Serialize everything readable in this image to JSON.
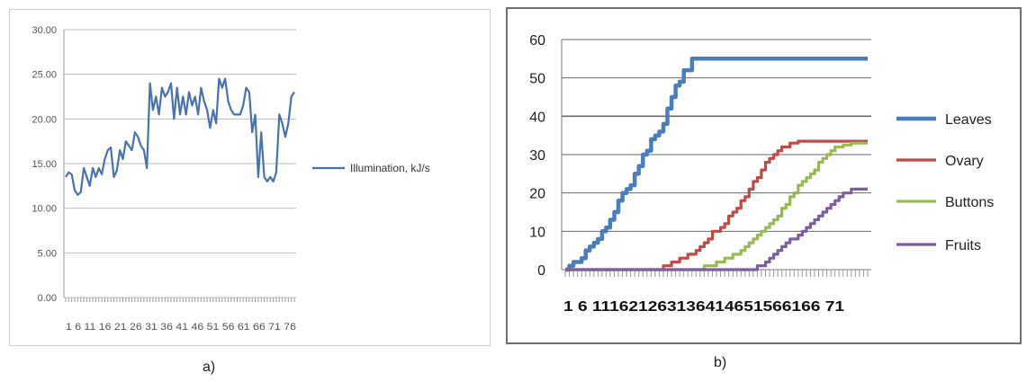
{
  "captions": {
    "a": "a)",
    "b": "b)"
  },
  "chart_data": [
    {
      "type": "line",
      "ylim": [
        0,
        30
      ],
      "yticks": [
        "0.00",
        "5.00",
        "10.00",
        "15.00",
        "20.00",
        "25.00",
        "30.00"
      ],
      "xtick_text": "1  6  11 16 21 26 31 36 41 46 51 56 61 66 71 76",
      "grid": true,
      "legend_position": "right",
      "colors": {
        "series": "#4a72b0",
        "grid": "#bdbdbd",
        "axis": "#9a9a9a"
      },
      "series": [
        {
          "name": "Illumination, kJ/s",
          "x": [
            1,
            2,
            3,
            4,
            5,
            6,
            7,
            8,
            9,
            10,
            11,
            12,
            13,
            14,
            15,
            16,
            17,
            18,
            19,
            20,
            21,
            22,
            23,
            24,
            25,
            26,
            27,
            28,
            29,
            30,
            31,
            32,
            33,
            34,
            35,
            36,
            37,
            38,
            39,
            40,
            41,
            42,
            43,
            44,
            45,
            46,
            47,
            48,
            49,
            50,
            51,
            52,
            53,
            54,
            55,
            56,
            57,
            58,
            59,
            60,
            61,
            62,
            63,
            64,
            65,
            66,
            67,
            68,
            69,
            70,
            71,
            72,
            73,
            74,
            75,
            76,
            77
          ],
          "values": [
            13.5,
            14.0,
            13.8,
            12.0,
            11.5,
            11.8,
            14.5,
            13.5,
            12.5,
            14.5,
            13.5,
            14.5,
            13.8,
            15.5,
            16.5,
            16.8,
            13.5,
            14.2,
            16.5,
            15.5,
            17.5,
            17.0,
            16.5,
            18.5,
            18.0,
            17.0,
            16.5,
            14.5,
            24.0,
            21.0,
            22.5,
            20.5,
            23.5,
            22.5,
            23.0,
            24.0,
            20.0,
            23.5,
            20.5,
            22.5,
            20.5,
            23.0,
            21.5,
            22.5,
            20.5,
            23.5,
            22.0,
            21.0,
            19.0,
            21.0,
            19.5,
            24.5,
            23.5,
            24.5,
            22.0,
            21.0,
            20.5,
            20.5,
            20.5,
            21.5,
            23.5,
            23.0,
            18.5,
            20.5,
            13.5,
            18.5,
            13.5,
            13.0,
            13.5,
            13.0,
            14.0,
            20.5,
            19.5,
            18.0,
            19.5,
            22.5,
            23.0
          ]
        }
      ]
    },
    {
      "type": "line",
      "ylim": [
        0,
        60
      ],
      "yticks": [
        "0",
        "10",
        "20",
        "30",
        "40",
        "50",
        "60"
      ],
      "xtick_text": "1  6 111621263136414651566166 71",
      "grid": true,
      "legend_position": "right",
      "colors": {
        "grid": "#6a6a6a",
        "axis": "#7a7a7a",
        "ticks": "#9a9a9a"
      },
      "series": [
        {
          "name": "Leaves",
          "color": "#4a7ebb",
          "x": [
            1,
            2,
            3,
            4,
            5,
            6,
            7,
            8,
            9,
            10,
            11,
            12,
            13,
            14,
            15,
            16,
            17,
            18,
            19,
            20,
            21,
            22,
            23,
            24,
            25,
            26,
            27,
            28,
            29,
            30,
            31,
            32,
            33,
            34,
            35,
            36,
            37,
            38,
            39,
            40,
            41,
            42,
            43,
            44,
            45,
            46,
            47,
            48,
            49,
            50,
            51,
            52,
            53,
            54,
            55,
            56,
            57,
            58,
            59,
            60,
            61,
            62,
            63,
            64,
            65,
            66,
            67,
            68,
            69,
            70,
            71,
            72,
            73,
            74,
            75
          ],
          "values": [
            0,
            1,
            2,
            2,
            3,
            5,
            6,
            7,
            8,
            10,
            11,
            13,
            15,
            18,
            20,
            21,
            22,
            25,
            27,
            30,
            31,
            34,
            35,
            36,
            38,
            42,
            45,
            48,
            49,
            52,
            52,
            55,
            55,
            55,
            55,
            55,
            55,
            55,
            55,
            55,
            55,
            55,
            55,
            55,
            55,
            55,
            55,
            55,
            55,
            55,
            55,
            55,
            55,
            55,
            55,
            55,
            55,
            55,
            55,
            55,
            55,
            55,
            55,
            55,
            55,
            55,
            55,
            55,
            55,
            55,
            55,
            55,
            55,
            55,
            55
          ]
        },
        {
          "name": "Ovary",
          "color": "#be4b48",
          "x": [
            1,
            2,
            3,
            4,
            5,
            6,
            7,
            8,
            9,
            10,
            11,
            12,
            13,
            14,
            15,
            16,
            17,
            18,
            19,
            20,
            21,
            22,
            23,
            24,
            25,
            26,
            27,
            28,
            29,
            30,
            31,
            32,
            33,
            34,
            35,
            36,
            37,
            38,
            39,
            40,
            41,
            42,
            43,
            44,
            45,
            46,
            47,
            48,
            49,
            50,
            51,
            52,
            53,
            54,
            55,
            56,
            57,
            58,
            59,
            60,
            61,
            62,
            63,
            64,
            65,
            66,
            67,
            68,
            69,
            70,
            71,
            72,
            73,
            74,
            75
          ],
          "values": [
            0,
            0,
            0,
            0,
            0,
            0,
            0,
            0,
            0,
            0,
            0,
            0,
            0,
            0,
            0,
            0,
            0,
            0,
            0,
            0,
            0,
            0,
            0,
            0,
            1,
            1,
            2,
            2,
            3,
            3,
            4,
            4,
            5,
            6,
            7,
            8,
            10,
            10,
            11,
            12,
            14,
            15,
            16,
            18,
            19,
            21,
            23,
            24,
            26,
            28,
            29,
            30,
            31,
            32,
            32,
            33,
            33,
            33.5,
            33.5,
            33.5,
            33.5,
            33.5,
            33.5,
            33.5,
            33.5,
            33.5,
            33.5,
            33.5,
            33.5,
            33.5,
            33.5,
            33.5,
            33.5,
            33.5,
            33.5
          ]
        },
        {
          "name": "Buttons",
          "color": "#98b954",
          "x": [
            1,
            2,
            3,
            4,
            5,
            6,
            7,
            8,
            9,
            10,
            11,
            12,
            13,
            14,
            15,
            16,
            17,
            18,
            19,
            20,
            21,
            22,
            23,
            24,
            25,
            26,
            27,
            28,
            29,
            30,
            31,
            32,
            33,
            34,
            35,
            36,
            37,
            38,
            39,
            40,
            41,
            42,
            43,
            44,
            45,
            46,
            47,
            48,
            49,
            50,
            51,
            52,
            53,
            54,
            55,
            56,
            57,
            58,
            59,
            60,
            61,
            62,
            63,
            64,
            65,
            66,
            67,
            68,
            69,
            70,
            71,
            72,
            73,
            74,
            75
          ],
          "values": [
            0,
            0,
            0,
            0,
            0,
            0,
            0,
            0,
            0,
            0,
            0,
            0,
            0,
            0,
            0,
            0,
            0,
            0,
            0,
            0,
            0,
            0,
            0,
            0,
            0,
            0,
            0,
            0,
            0,
            0,
            0,
            0,
            0,
            0,
            1,
            1,
            1,
            2,
            2,
            3,
            3,
            4,
            4,
            5,
            6,
            7,
            8,
            9,
            10,
            11,
            12,
            13,
            14,
            16,
            17,
            19,
            20,
            22,
            23,
            24,
            25,
            26,
            28,
            29,
            30,
            31,
            32,
            32,
            32.5,
            32.5,
            33,
            33,
            33,
            33,
            33
          ]
        },
        {
          "name": "Fruits",
          "color": "#7d5fa0",
          "x": [
            1,
            2,
            3,
            4,
            5,
            6,
            7,
            8,
            9,
            10,
            11,
            12,
            13,
            14,
            15,
            16,
            17,
            18,
            19,
            20,
            21,
            22,
            23,
            24,
            25,
            26,
            27,
            28,
            29,
            30,
            31,
            32,
            33,
            34,
            35,
            36,
            37,
            38,
            39,
            40,
            41,
            42,
            43,
            44,
            45,
            46,
            47,
            48,
            49,
            50,
            51,
            52,
            53,
            54,
            55,
            56,
            57,
            58,
            59,
            60,
            61,
            62,
            63,
            64,
            65,
            66,
            67,
            68,
            69,
            70,
            71,
            72,
            73,
            74,
            75
          ],
          "values": [
            0,
            0,
            0,
            0,
            0,
            0,
            0,
            0,
            0,
            0,
            0,
            0,
            0,
            0,
            0,
            0,
            0,
            0,
            0,
            0,
            0,
            0,
            0,
            0,
            0,
            0,
            0,
            0,
            0,
            0,
            0,
            0,
            0,
            0,
            0,
            0,
            0,
            0,
            0,
            0,
            0,
            0,
            0,
            0,
            0,
            0,
            0,
            1,
            1,
            2,
            3,
            4,
            5,
            6,
            7,
            8,
            8,
            9,
            10,
            11,
            12,
            13,
            14,
            15,
            16,
            17,
            18,
            19,
            20,
            20,
            21,
            21,
            21,
            21,
            21
          ]
        }
      ]
    }
  ]
}
